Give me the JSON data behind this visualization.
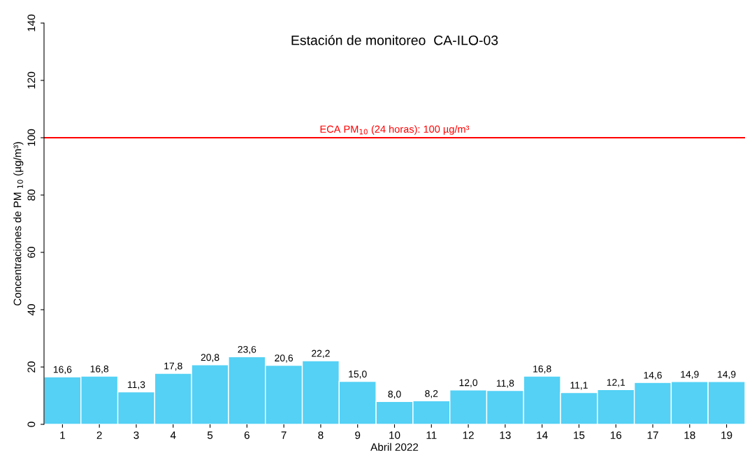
{
  "chart_data": {
    "type": "bar",
    "title": "Estación de monitoreo  CA-ILO-03",
    "xlabel": "Abril 2022",
    "ylabel": "Concentraciones de PM $_{10}$ (µg/m³)",
    "categories": [
      "1",
      "2",
      "3",
      "4",
      "5",
      "6",
      "7",
      "8",
      "9",
      "10",
      "11",
      "12",
      "13",
      "14",
      "15",
      "16",
      "17",
      "18",
      "19"
    ],
    "values": [
      16.6,
      16.8,
      11.3,
      17.8,
      20.8,
      23.6,
      20.6,
      22.2,
      15.0,
      8.0,
      8.2,
      12.0,
      11.8,
      16.8,
      11.1,
      12.1,
      14.6,
      14.9,
      14.9
    ],
    "value_labels": [
      "16,6",
      "16,8",
      "11,3",
      "17,8",
      "20,8",
      "23,6",
      "20,6",
      "22,2",
      "15,0",
      "8,0",
      "8,2",
      "12,0",
      "11,8",
      "16,8",
      "11,1",
      "12,1",
      "14,6",
      "14,9",
      "14,9"
    ],
    "color": "#54d1f5",
    "ylim": [
      0,
      140
    ],
    "yticks": [
      0,
      20,
      40,
      60,
      80,
      100,
      120,
      140
    ],
    "ref_lines": [
      {
        "axis": "y",
        "value": 100,
        "label": "ECA PM$_{10}$ (24 horas): 100 µg/m³",
        "color": "#ff0000",
        "line_style": "solid"
      }
    ],
    "grid": false,
    "legend": false
  }
}
